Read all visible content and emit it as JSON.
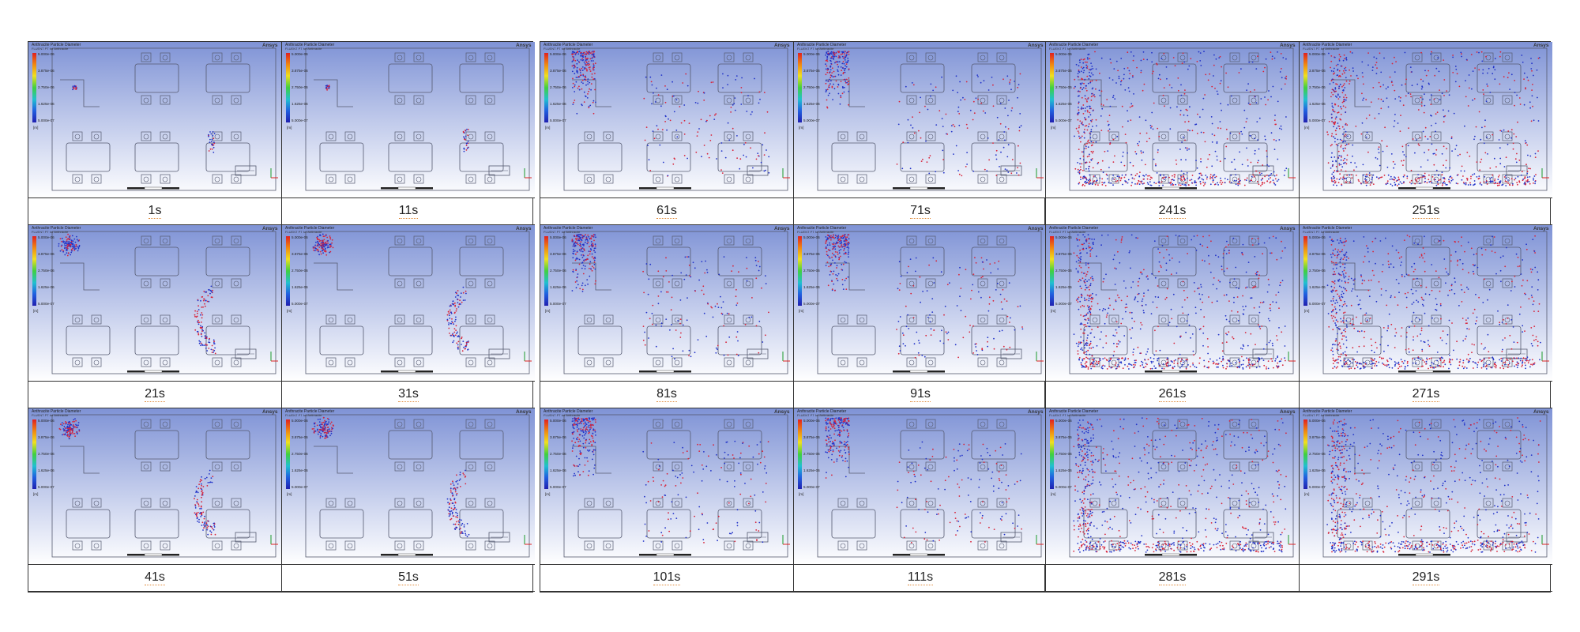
{
  "legend": {
    "title": "Anthracite Particle Diameter",
    "subtitle": "FLUENT PT for Anthracite",
    "ticks": [
      "5.000e-06",
      "3.875e-06",
      "2.750e-06",
      "1.625e-06",
      "5.000e-07"
    ],
    "unit": "[m]",
    "brand": "Ansys"
  },
  "colors": {
    "bg_top": "#7f93d6",
    "bg_bottom": "#ffffff",
    "particle_blue": "#2233c8",
    "particle_red": "#d8243a",
    "outline": "#555a70"
  },
  "frames": [
    {
      "label": "1s",
      "t": 1
    },
    {
      "label": "11s",
      "t": 11
    },
    {
      "label": "61s",
      "t": 61
    },
    {
      "label": "71s",
      "t": 71
    },
    {
      "label": "241s",
      "t": 241
    },
    {
      "label": "251s",
      "t": 251
    },
    {
      "label": "21s",
      "t": 21
    },
    {
      "label": "31s",
      "t": 31
    },
    {
      "label": "81s",
      "t": 81
    },
    {
      "label": "91s",
      "t": 91
    },
    {
      "label": "261s",
      "t": 261
    },
    {
      "label": "271s",
      "t": 271
    },
    {
      "label": "41s",
      "t": 41
    },
    {
      "label": "51s",
      "t": 51
    },
    {
      "label": "101s",
      "t": 101
    },
    {
      "label": "111s",
      "t": 111
    },
    {
      "label": "281s",
      "t": 281
    },
    {
      "label": "291s",
      "t": 291
    }
  ]
}
